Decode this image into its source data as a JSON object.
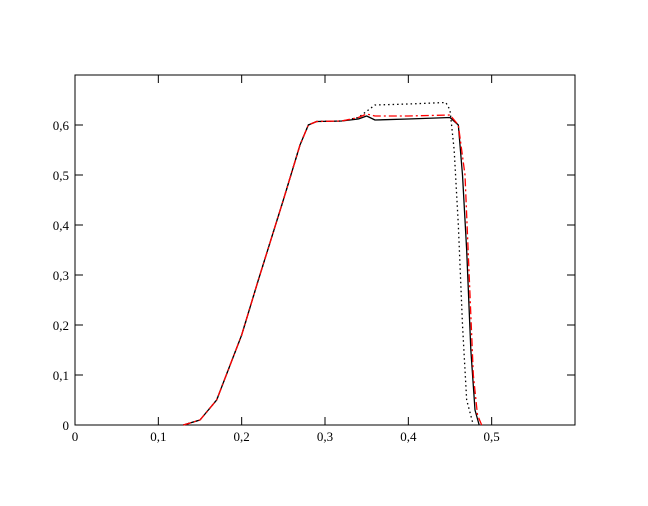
{
  "chart_data": {
    "type": "line",
    "xlim": [
      0,
      0.6
    ],
    "ylim": [
      0,
      0.7
    ],
    "xticks": [
      0,
      {
        "value": 0.1,
        "label": "0,1"
      },
      {
        "value": 0.2,
        "label": "0,2"
      },
      {
        "value": 0.3,
        "label": "0,3"
      },
      {
        "value": 0.4,
        "label": "0,4"
      },
      {
        "value": 0.5,
        "label": "0,5"
      }
    ],
    "yticks": [
      0,
      {
        "value": 0.1,
        "label": "0,1"
      },
      {
        "value": 0.2,
        "label": "0,2"
      },
      {
        "value": 0.3,
        "label": "0,3"
      },
      {
        "value": 0.4,
        "label": "0,4"
      },
      {
        "value": 0.5,
        "label": "0,5"
      },
      {
        "value": 0.6,
        "label": "0,6"
      }
    ],
    "series": [
      {
        "color": "#000000",
        "dash": "none",
        "x": [
          0.13,
          0.15,
          0.17,
          0.2,
          0.22,
          0.25,
          0.27,
          0.28,
          0.29,
          0.32,
          0.34,
          0.35,
          0.36,
          0.4,
          0.45,
          0.46,
          0.465,
          0.47,
          0.475,
          0.48,
          0.485
        ],
        "values": [
          0,
          0.01,
          0.05,
          0.18,
          0.29,
          0.45,
          0.56,
          0.6,
          0.607,
          0.608,
          0.612,
          0.618,
          0.61,
          0.612,
          0.615,
          0.6,
          0.5,
          0.35,
          0.15,
          0.03,
          0
        ]
      },
      {
        "color": "#000000",
        "dash": "1.5 3",
        "x": [
          0.13,
          0.15,
          0.17,
          0.2,
          0.22,
          0.25,
          0.27,
          0.28,
          0.29,
          0.32,
          0.34,
          0.36,
          0.4,
          0.445,
          0.45,
          0.455,
          0.46,
          0.465,
          0.47,
          0.478
        ],
        "values": [
          0,
          0.01,
          0.05,
          0.18,
          0.29,
          0.45,
          0.56,
          0.6,
          0.607,
          0.608,
          0.615,
          0.64,
          0.642,
          0.645,
          0.63,
          0.55,
          0.4,
          0.2,
          0.05,
          0
        ]
      },
      {
        "color": "#ff0000",
        "dash": "8 3 2 3",
        "x": [
          0.13,
          0.15,
          0.17,
          0.2,
          0.22,
          0.25,
          0.27,
          0.28,
          0.29,
          0.32,
          0.34,
          0.35,
          0.36,
          0.4,
          0.45,
          0.46,
          0.468,
          0.473,
          0.478,
          0.483,
          0.488
        ],
        "values": [
          0,
          0.01,
          0.05,
          0.18,
          0.29,
          0.45,
          0.56,
          0.6,
          0.607,
          0.608,
          0.615,
          0.622,
          0.618,
          0.618,
          0.62,
          0.6,
          0.5,
          0.3,
          0.1,
          0.02,
          0
        ]
      }
    ]
  }
}
